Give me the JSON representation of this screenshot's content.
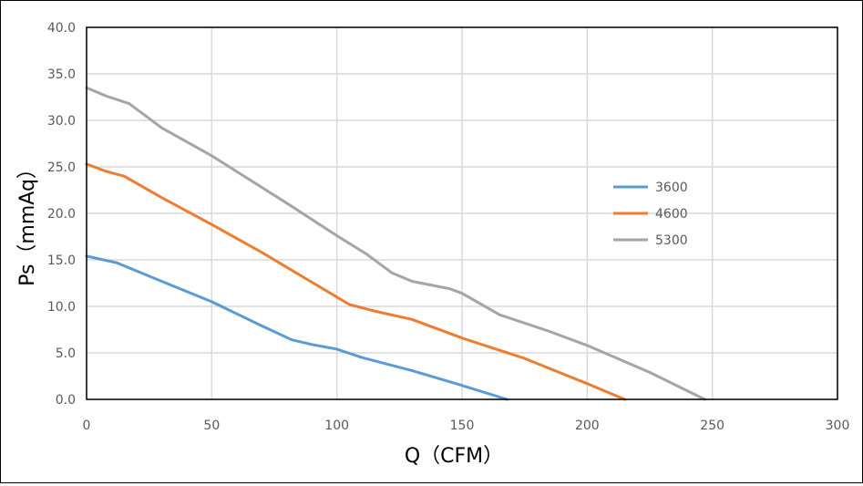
{
  "chart_data": {
    "type": "line",
    "title": "",
    "xlabel": "Q（CFM）",
    "ylabel": "Ps（mmAq）",
    "xlim": [
      0,
      300
    ],
    "ylim": [
      0,
      40
    ],
    "x_ticks": [
      "0",
      "50",
      "100",
      "150",
      "200",
      "250",
      "300"
    ],
    "y_ticks": [
      "0.0",
      "5.0",
      "10.0",
      "15.0",
      "20.0",
      "25.0",
      "30.0",
      "35.0",
      "40.0"
    ],
    "grid": true,
    "legend_position": "right",
    "series": [
      {
        "name": "3600",
        "color": "#5B9BD5",
        "points": [
          [
            0,
            15.4
          ],
          [
            12,
            14.7
          ],
          [
            30,
            12.7
          ],
          [
            50,
            10.5
          ],
          [
            70,
            7.9
          ],
          [
            82,
            6.4
          ],
          [
            90,
            5.9
          ],
          [
            100,
            5.4
          ],
          [
            110,
            4.5
          ],
          [
            130,
            3.1
          ],
          [
            150,
            1.5
          ],
          [
            168,
            0
          ]
        ]
      },
      {
        "name": "4600",
        "color": "#ED7D31",
        "points": [
          [
            0,
            25.3
          ],
          [
            8,
            24.5
          ],
          [
            15,
            24.0
          ],
          [
            30,
            21.7
          ],
          [
            50,
            18.8
          ],
          [
            70,
            15.8
          ],
          [
            90,
            12.6
          ],
          [
            100,
            11.0
          ],
          [
            105,
            10.2
          ],
          [
            115,
            9.5
          ],
          [
            130,
            8.6
          ],
          [
            150,
            6.6
          ],
          [
            175,
            4.4
          ],
          [
            200,
            1.7
          ],
          [
            215,
            0
          ]
        ]
      },
      {
        "name": "5300",
        "color": "#A5A5A5",
        "points": [
          [
            0,
            33.5
          ],
          [
            8,
            32.6
          ],
          [
            17,
            31.8
          ],
          [
            30,
            29.2
          ],
          [
            50,
            26.2
          ],
          [
            80,
            21.1
          ],
          [
            100,
            17.6
          ],
          [
            112,
            15.6
          ],
          [
            122,
            13.6
          ],
          [
            130,
            12.7
          ],
          [
            145,
            11.9
          ],
          [
            150,
            11.4
          ],
          [
            165,
            9.1
          ],
          [
            185,
            7.3
          ],
          [
            200,
            5.8
          ],
          [
            225,
            2.9
          ],
          [
            247,
            0
          ]
        ]
      }
    ]
  }
}
